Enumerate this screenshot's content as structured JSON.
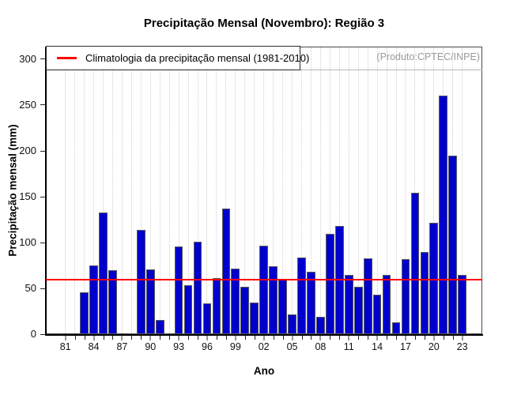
{
  "title": "Precipitação Mensal (Novembro): Região 3",
  "annotation": "(Produto:CPTEC/INPE)",
  "chart_data": {
    "type": "bar",
    "title": "Precipitação Mensal (Novembro): Região 3",
    "xlabel": "Ano",
    "ylabel": "Precipitação mensal (mm)",
    "categories": [
      "1981",
      "1982",
      "1983",
      "1984",
      "1985",
      "1986",
      "1987",
      "1988",
      "1989",
      "1990",
      "1991",
      "1992",
      "1993",
      "1994",
      "1995",
      "1996",
      "1997",
      "1998",
      "1999",
      "2000",
      "2001",
      "2002",
      "2003",
      "2004",
      "2005",
      "2006",
      "2007",
      "2008",
      "2009",
      "2010",
      "2011",
      "2012",
      "2013",
      "2014",
      "2015",
      "2016",
      "2017",
      "2018",
      "2019",
      "2020",
      "2021",
      "2022",
      "2023"
    ],
    "values": [
      0,
      0,
      46,
      75,
      133,
      70,
      0,
      1,
      114,
      71,
      16,
      0,
      96,
      54,
      101,
      34,
      61,
      137,
      72,
      52,
      35,
      97,
      74,
      60,
      22,
      84,
      68,
      19,
      110,
      118,
      65,
      52,
      83,
      43,
      65,
      13,
      82,
      154,
      90,
      122,
      260,
      195,
      65
    ],
    "x_tick_labels": [
      "81",
      "84",
      "87",
      "90",
      "93",
      "96",
      "99",
      "02",
      "05",
      "08",
      "11",
      "14",
      "17",
      "20",
      "23"
    ],
    "yticks": [
      0,
      50,
      100,
      150,
      200,
      250,
      300
    ],
    "ylim": [
      0,
      313
    ],
    "grid": "vertical-dotted",
    "legend_position": "top-left-inside",
    "bar_color": "#0000cd",
    "bar_border_color": "#5a5a5a",
    "grid_color": "#d0d0d0",
    "reference_line": {
      "label": "Climatologia da precipitação mensal (1981-2010)",
      "value": 60,
      "color": "#ff0000"
    }
  }
}
